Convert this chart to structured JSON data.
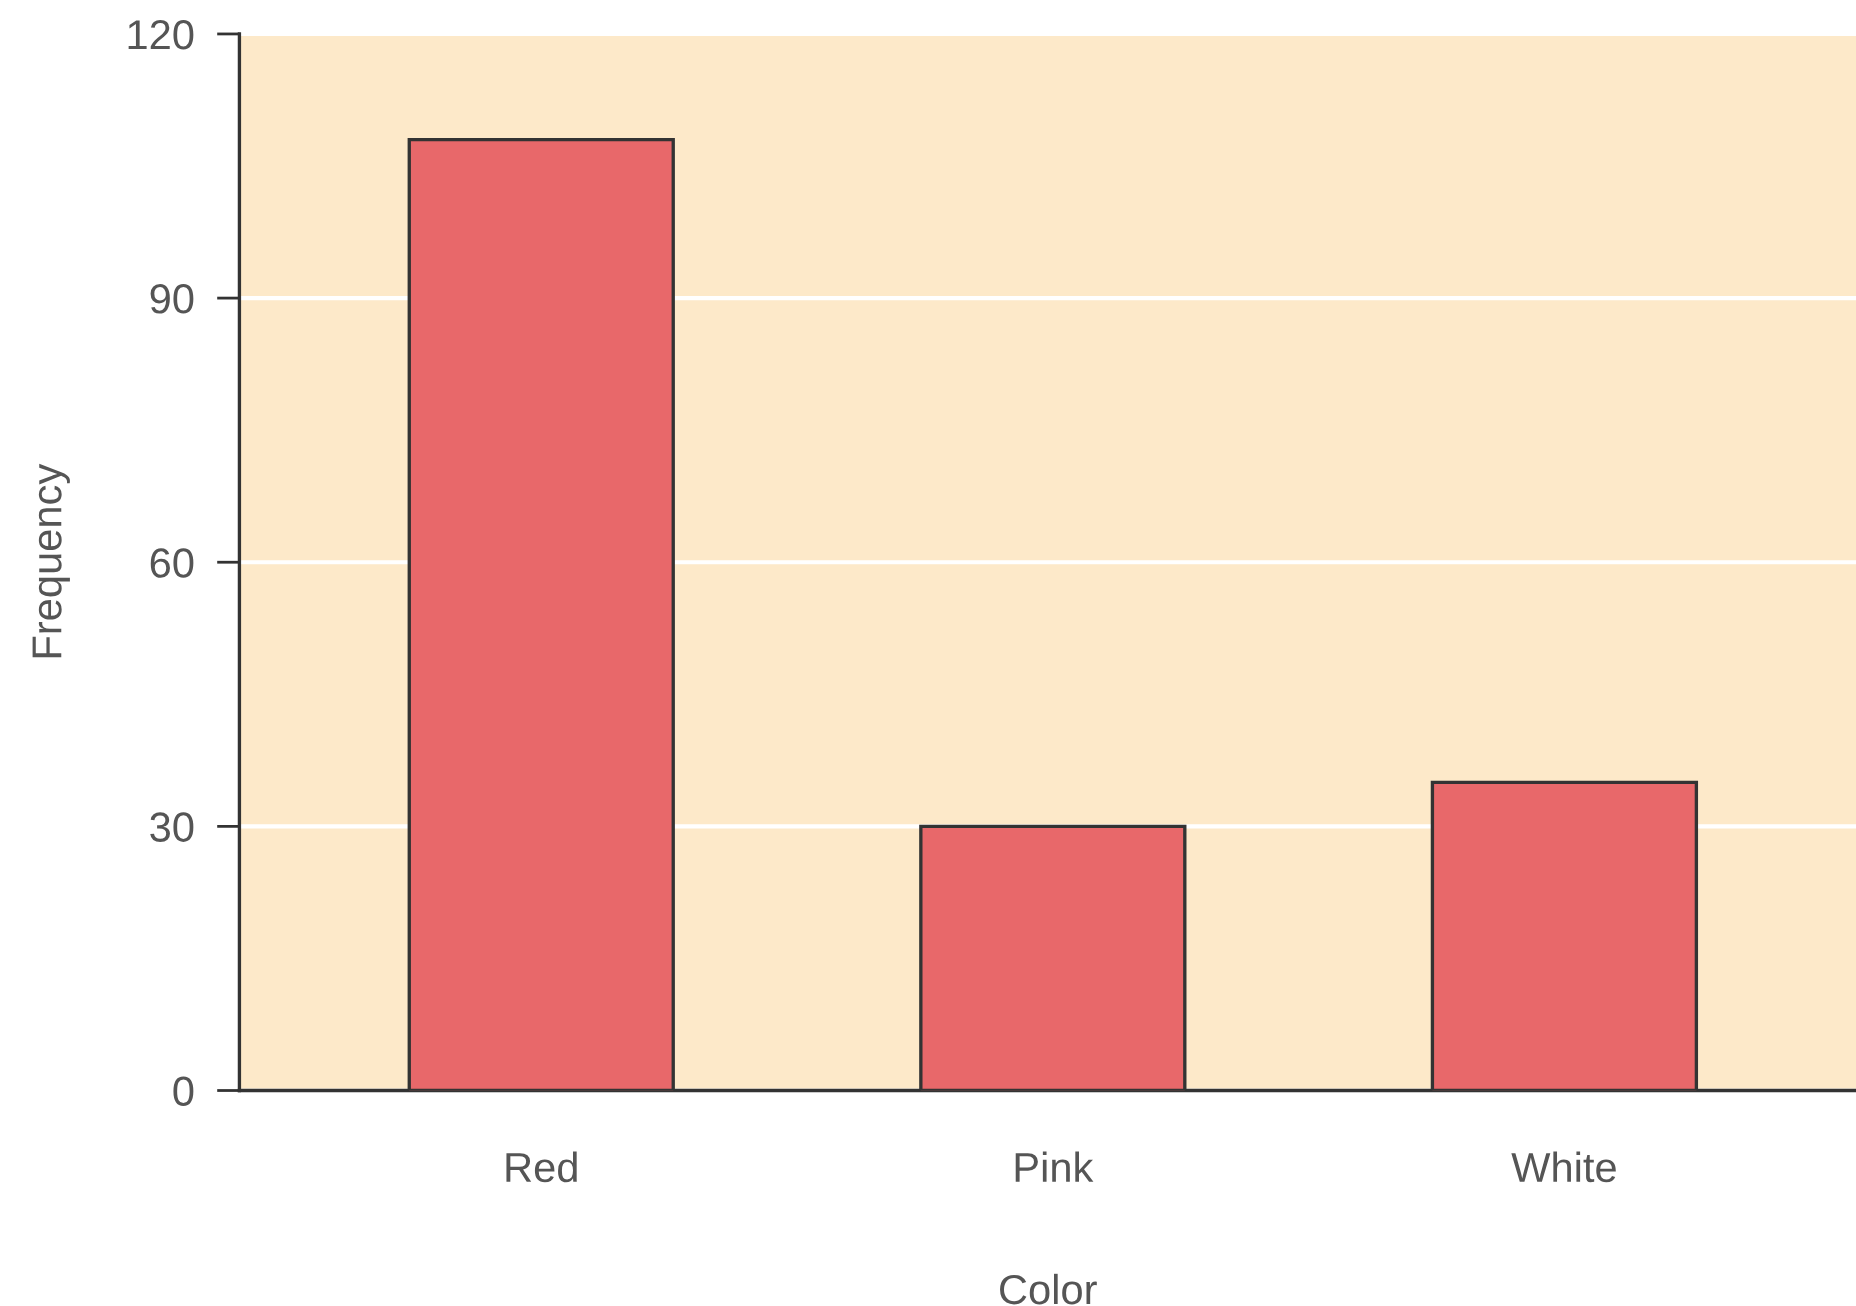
{
  "chart_data": {
    "type": "bar",
    "xlabel": "Color",
    "ylabel": "Frequency",
    "categories": [
      "Red",
      "Pink",
      "White"
    ],
    "values": [
      108,
      30,
      35
    ],
    "color": "#e8686a",
    "ylim": [
      0,
      120
    ],
    "yticks": [
      0,
      30,
      60,
      90,
      120
    ],
    "grid": "y",
    "legend": false
  }
}
